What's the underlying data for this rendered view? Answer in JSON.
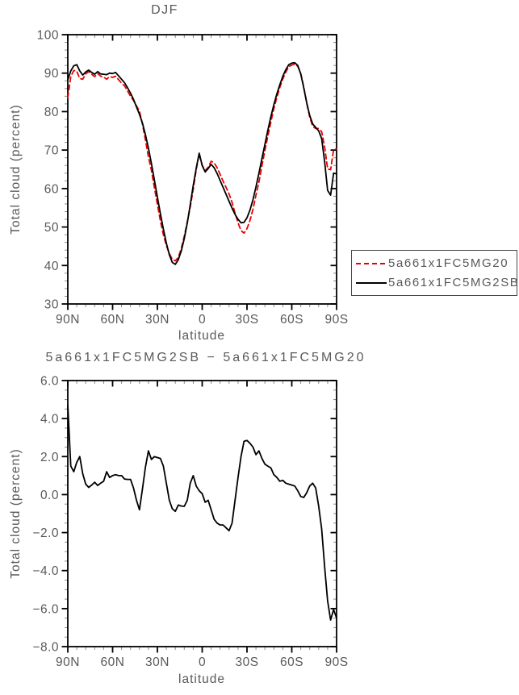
{
  "figure": {
    "background": "#ffffff",
    "text_color": "#595959",
    "axis_color": "#000000",
    "minor_tick_color": "#8a8a8a"
  },
  "chart_data": [
    {
      "type": "line",
      "title": "DJF",
      "xlabel": "latitude",
      "ylabel": "Total cloud (percent)",
      "xlim": [
        90,
        -90
      ],
      "ylim": [
        30,
        100
      ],
      "grid": false,
      "xmajor_step": 30,
      "xminor_step": 6,
      "ymajor_step": 10,
      "yminor_step": 2,
      "xtick_values": [
        90,
        60,
        30,
        0,
        -30,
        -60,
        -90
      ],
      "xtick_labels": [
        "90N",
        "60N",
        "30N",
        "0",
        "30S",
        "60S",
        "90S"
      ],
      "ytick_values": [
        100,
        90,
        80,
        70,
        60,
        50,
        40,
        30
      ],
      "ytick_labels": [
        "100",
        "90",
        "80",
        "70",
        "60",
        "50",
        "40",
        "30"
      ],
      "legend_position": "outside-lower-right",
      "x": [
        90,
        88,
        86,
        84,
        82,
        80,
        78,
        76,
        74,
        72,
        70,
        68,
        66,
        64,
        62,
        60,
        58,
        56,
        54,
        52,
        50,
        48,
        46,
        44,
        42,
        40,
        38,
        36,
        34,
        32,
        30,
        28,
        26,
        24,
        22,
        20,
        18,
        16,
        14,
        12,
        10,
        8,
        6,
        4,
        2,
        0,
        -2,
        -4,
        -6,
        -8,
        -10,
        -12,
        -14,
        -16,
        -18,
        -20,
        -22,
        -24,
        -26,
        -28,
        -30,
        -32,
        -34,
        -36,
        -38,
        -40,
        -42,
        -44,
        -46,
        -48,
        -50,
        -52,
        -54,
        -56,
        -58,
        -60,
        -62,
        -64,
        -66,
        -68,
        -70,
        -72,
        -74,
        -76,
        -78,
        -80,
        -82,
        -84,
        -86,
        -88,
        -90
      ],
      "series": [
        {
          "name": "5a661x1FC5MG20",
          "color": "#e80000",
          "dash": true,
          "values": [
            83.6,
            89.1,
            90.7,
            90.5,
            88.6,
            88.4,
            89.8,
            90.4,
            89.7,
            89.1,
            89.9,
            89.2,
            89.0,
            88.4,
            89.1,
            88.9,
            89.2,
            88.3,
            87.4,
            86.7,
            85.4,
            84.0,
            82.9,
            81.5,
            80.1,
            76.7,
            72.6,
            68.2,
            64.7,
            60.2,
            55.9,
            51.6,
            48.0,
            45.2,
            43.1,
            41.6,
            41.2,
            42.1,
            44.4,
            47.6,
            51.3,
            55.2,
            59.8,
            64.9,
            69.0,
            66.0,
            64.7,
            65.5,
            67.1,
            66.7,
            65.4,
            63.7,
            61.9,
            60.3,
            58.6,
            56.4,
            53.6,
            51.1,
            49.1,
            48.4,
            49.6,
            51.7,
            54.6,
            58.3,
            61.7,
            65.9,
            69.9,
            73.7,
            77.3,
            80.8,
            83.7,
            86.3,
            88.5,
            90.3,
            91.7,
            92.1,
            92.3,
            91.8,
            89.9,
            86.4,
            82.2,
            78.6,
            76.2,
            75.6,
            75.6,
            74.8,
            70.8,
            65.1,
            64.9,
            70.1,
            70.3
          ]
        },
        {
          "name": "5a661x1FC5MG2SB",
          "color": "#000000",
          "dash": false,
          "values": [
            88.3,
            90.6,
            91.9,
            92.2,
            90.6,
            89.5,
            90.3,
            90.8,
            90.2,
            89.7,
            90.4,
            89.8,
            89.7,
            89.6,
            90.0,
            89.9,
            90.2,
            89.3,
            88.4,
            87.5,
            86.2,
            84.8,
            83.2,
            81.2,
            79.3,
            77.0,
            74.0,
            70.5,
            66.5,
            62.2,
            57.8,
            53.5,
            49.5,
            45.8,
            42.8,
            40.8,
            40.3,
            41.5,
            43.8,
            47.0,
            51.0,
            55.8,
            60.8,
            65.3,
            69.2,
            66.0,
            64.3,
            65.2,
            66.3,
            65.4,
            63.9,
            62.1,
            60.3,
            58.5,
            56.7,
            54.9,
            53.3,
            52.0,
            51.1,
            51.2,
            52.4,
            54.4,
            57.1,
            60.4,
            64.0,
            67.8,
            71.5,
            75.2,
            78.7,
            81.8,
            84.6,
            87.0,
            89.2,
            90.9,
            92.2,
            92.6,
            92.7,
            92.0,
            89.8,
            86.2,
            82.3,
            79.0,
            76.8,
            75.9,
            75.0,
            73.0,
            67.0,
            59.5,
            58.3,
            64.0,
            63.8
          ]
        }
      ]
    },
    {
      "type": "line",
      "title": "5a661x1FC5MG2SB − 5a661x1FC5MG20",
      "xlabel": "latitude",
      "ylabel": "Total cloud (percent)",
      "xlim": [
        90,
        -90
      ],
      "ylim": [
        -8,
        6
      ],
      "grid": false,
      "xmajor_step": 30,
      "xminor_step": 6,
      "ymajor_step": 2,
      "yminor_step": 0.5,
      "xtick_values": [
        90,
        60,
        30,
        0,
        -30,
        -60,
        -90
      ],
      "xtick_labels": [
        "90N",
        "60N",
        "30N",
        "0",
        "30S",
        "60S",
        "90S"
      ],
      "ytick_values": [
        6,
        4,
        2,
        0,
        -2,
        -4,
        -6,
        -8
      ],
      "ytick_labels": [
        "6.0",
        "4.0",
        "2.0",
        "0.0",
        "−2.0",
        "−4.0",
        "−6.0",
        "−8.0"
      ],
      "x": [
        90,
        88,
        86,
        84,
        82,
        80,
        78,
        76,
        74,
        72,
        70,
        68,
        66,
        64,
        62,
        60,
        58,
        56,
        54,
        52,
        50,
        48,
        46,
        44,
        42,
        40,
        38,
        36,
        34,
        32,
        30,
        28,
        26,
        24,
        22,
        20,
        18,
        16,
        14,
        12,
        10,
        8,
        6,
        4,
        2,
        0,
        -2,
        -4,
        -6,
        -8,
        -10,
        -12,
        -14,
        -16,
        -18,
        -20,
        -22,
        -24,
        -26,
        -28,
        -30,
        -32,
        -34,
        -36,
        -38,
        -40,
        -42,
        -44,
        -46,
        -48,
        -50,
        -52,
        -54,
        -56,
        -58,
        -60,
        -62,
        -64,
        -66,
        -68,
        -70,
        -72,
        -74,
        -76,
        -78,
        -80,
        -82,
        -84,
        -86,
        -88,
        -90
      ],
      "series": [
        {
          "name": "5a661x1FC5MG2SB − 5a661x1FC5MG20",
          "color": "#000000",
          "dash": false,
          "values": [
            4.7,
            1.5,
            1.2,
            1.7,
            2.0,
            1.1,
            0.55,
            0.38,
            0.5,
            0.65,
            0.48,
            0.6,
            0.7,
            1.2,
            0.9,
            1.0,
            1.05,
            1.0,
            1.0,
            0.82,
            0.8,
            0.8,
            0.35,
            -0.3,
            -0.8,
            0.3,
            1.45,
            2.3,
            1.85,
            2.0,
            1.95,
            1.9,
            1.5,
            0.6,
            -0.3,
            -0.75,
            -0.88,
            -0.55,
            -0.6,
            -0.62,
            -0.3,
            0.6,
            1.0,
            0.45,
            0.2,
            0.05,
            -0.4,
            -0.3,
            -0.8,
            -1.3,
            -1.5,
            -1.6,
            -1.6,
            -1.75,
            -1.9,
            -1.5,
            -0.3,
            0.9,
            2.0,
            2.8,
            2.85,
            2.7,
            2.5,
            2.1,
            2.3,
            1.9,
            1.6,
            1.5,
            1.4,
            1.05,
            0.9,
            0.7,
            0.75,
            0.6,
            0.55,
            0.5,
            0.45,
            0.2,
            -0.1,
            -0.15,
            0.1,
            0.45,
            0.6,
            0.35,
            -0.6,
            -1.8,
            -3.8,
            -5.6,
            -6.6,
            -6.05,
            -6.5
          ]
        }
      ]
    }
  ]
}
